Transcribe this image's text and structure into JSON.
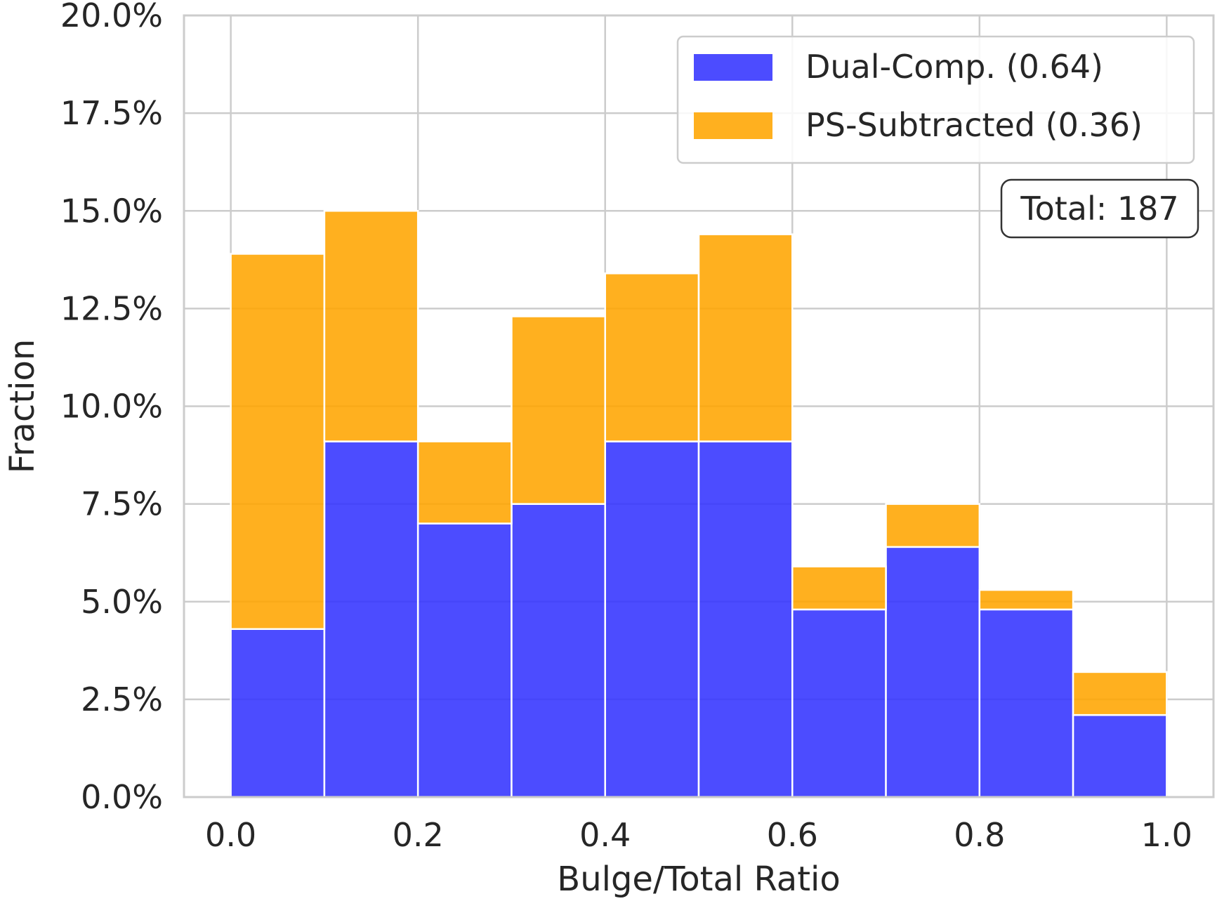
{
  "chart_data": {
    "type": "bar",
    "stacked": true,
    "bin_edges": [
      0.0,
      0.1,
      0.2,
      0.3,
      0.4,
      0.5,
      0.6,
      0.7,
      0.8,
      0.9,
      1.0
    ],
    "series": [
      {
        "name": "Dual-Comp. (0.64)",
        "color": "#3333ff",
        "values": [
          4.3,
          9.1,
          7.0,
          7.5,
          9.1,
          9.1,
          4.8,
          6.4,
          4.8,
          2.1
        ]
      },
      {
        "name": "PS-Subtracted (0.36)",
        "color": "#ffa500",
        "values": [
          9.6,
          5.9,
          2.1,
          4.8,
          4.3,
          5.3,
          1.1,
          1.1,
          0.5,
          1.1
        ]
      }
    ],
    "xlabel": "Bulge/Total Ratio",
    "ylabel": "Fraction",
    "xlim": [
      -0.05,
      1.05
    ],
    "ylim": [
      0,
      20
    ],
    "xticks": [
      0.0,
      0.2,
      0.4,
      0.6,
      0.8,
      1.0
    ],
    "xtick_labels": [
      "0.0",
      "0.2",
      "0.4",
      "0.6",
      "0.8",
      "1.0"
    ],
    "yticks": [
      0,
      2.5,
      5,
      7.5,
      10,
      12.5,
      15,
      17.5,
      20
    ],
    "ytick_labels": [
      "0.0%",
      "2.5%",
      "5.0%",
      "7.5%",
      "10.0%",
      "12.5%",
      "15.0%",
      "17.5%",
      "20.0%"
    ],
    "grid": true,
    "legend_position": "top-right",
    "annotation": "Total: 187"
  }
}
